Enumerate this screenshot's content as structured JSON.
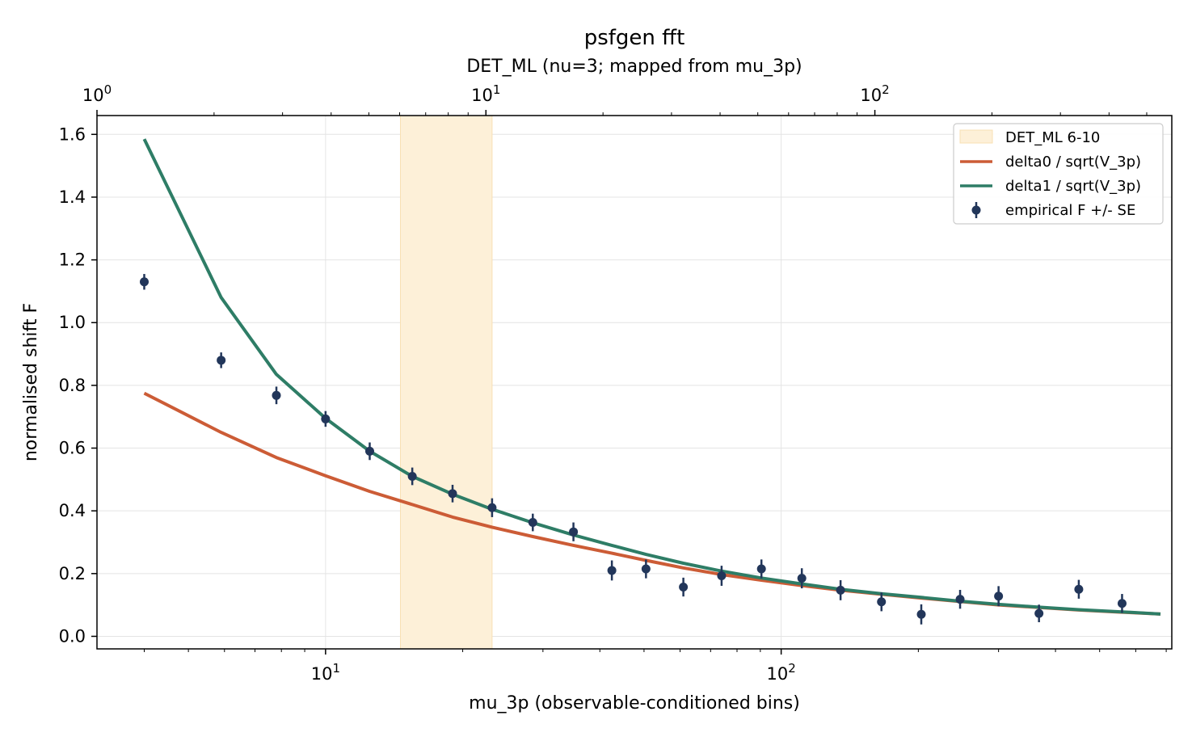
{
  "chart_data": {
    "type": "line",
    "title": "psfgen fft",
    "xlabel": "mu_3p (observable-conditioned bins)",
    "ylabel": "normalised shift F",
    "top_xlabel": "DET_ML (nu=3; mapped from mu_3p)",
    "x_scale": "log",
    "xlim": [
      3.15,
      720
    ],
    "ylim": [
      -0.04,
      1.66
    ],
    "y_ticks": [
      0.0,
      0.2,
      0.4,
      0.6,
      0.8,
      1.0,
      1.2,
      1.4,
      1.6
    ],
    "y_tick_labels": [
      "0.0",
      "0.2",
      "0.4",
      "0.6",
      "0.8",
      "1.0",
      "1.2",
      "1.4",
      "1.6"
    ],
    "x_ticks": [
      {
        "value": 10,
        "base": "10",
        "exp": "1"
      },
      {
        "value": 100,
        "base": "10",
        "exp": "2"
      }
    ],
    "top_axis": {
      "scale": "log",
      "xlim": [
        1.0,
        580
      ],
      "ticks": [
        {
          "value": 1,
          "base": "10",
          "exp": "0"
        },
        {
          "value": 10,
          "base": "10",
          "exp": "1"
        },
        {
          "value": 100,
          "base": "10",
          "exp": "2"
        }
      ]
    },
    "grid": true,
    "legend_position": "top-right",
    "band": {
      "name": "DET_ML 6-10",
      "x0": 14.6,
      "x1": 23.2,
      "color": "#fdf0d8",
      "edge": "#f8e0b4"
    },
    "series": [
      {
        "name": "delta0 / sqrt(V_3p)",
        "color": "#cc5c36",
        "x": [
          4.0,
          5.9,
          7.8,
          10.0,
          12.5,
          15.5,
          19.0,
          23.2,
          28.5,
          35.0,
          42.5,
          50.5,
          61.0,
          74.0,
          90.5,
          111.0,
          135.0,
          166.0,
          203.0,
          247.0,
          300.0,
          368.0,
          450.0,
          560.0,
          680.0
        ],
        "y": [
          0.775,
          0.65,
          0.57,
          0.512,
          0.462,
          0.42,
          0.38,
          0.348,
          0.318,
          0.29,
          0.265,
          0.242,
          0.218,
          0.197,
          0.179,
          0.162,
          0.147,
          0.134,
          0.122,
          0.111,
          0.1,
          0.092,
          0.084,
          0.077,
          0.071
        ]
      },
      {
        "name": "delta1 / sqrt(V_3p)",
        "color": "#2e7d66",
        "x": [
          4.0,
          5.9,
          7.8,
          10.0,
          12.5,
          15.5,
          19.0,
          23.2,
          28.5,
          35.0,
          42.5,
          50.5,
          61.0,
          74.0,
          90.5,
          111.0,
          135.0,
          166.0,
          203.0,
          247.0,
          300.0,
          368.0,
          450.0,
          560.0,
          680.0
        ],
        "y": [
          1.585,
          1.08,
          0.835,
          0.695,
          0.59,
          0.51,
          0.453,
          0.405,
          0.362,
          0.323,
          0.29,
          0.261,
          0.233,
          0.208,
          0.186,
          0.167,
          0.15,
          0.136,
          0.124,
          0.112,
          0.102,
          0.093,
          0.085,
          0.078,
          0.071
        ]
      }
    ],
    "scatter": {
      "name": "empirical F +/- SE",
      "color": "#22365a",
      "points": [
        {
          "x": 4.0,
          "y": 1.13,
          "se": 0.025
        },
        {
          "x": 5.9,
          "y": 0.88,
          "se": 0.025
        },
        {
          "x": 7.8,
          "y": 0.768,
          "se": 0.028
        },
        {
          "x": 10.0,
          "y": 0.693,
          "se": 0.025
        },
        {
          "x": 12.5,
          "y": 0.59,
          "se": 0.028
        },
        {
          "x": 15.5,
          "y": 0.51,
          "se": 0.028
        },
        {
          "x": 19.0,
          "y": 0.455,
          "se": 0.028
        },
        {
          "x": 23.2,
          "y": 0.41,
          "se": 0.03
        },
        {
          "x": 28.5,
          "y": 0.363,
          "se": 0.028
        },
        {
          "x": 35.0,
          "y": 0.333,
          "se": 0.03
        },
        {
          "x": 42.5,
          "y": 0.21,
          "se": 0.032
        },
        {
          "x": 50.5,
          "y": 0.215,
          "se": 0.03
        },
        {
          "x": 61.0,
          "y": 0.157,
          "se": 0.03
        },
        {
          "x": 74.0,
          "y": 0.193,
          "se": 0.032
        },
        {
          "x": 90.5,
          "y": 0.215,
          "se": 0.03
        },
        {
          "x": 111.0,
          "y": 0.185,
          "se": 0.032
        },
        {
          "x": 135.0,
          "y": 0.147,
          "se": 0.032
        },
        {
          "x": 166.0,
          "y": 0.11,
          "se": 0.03
        },
        {
          "x": 203.0,
          "y": 0.07,
          "se": 0.032
        },
        {
          "x": 247.0,
          "y": 0.118,
          "se": 0.03
        },
        {
          "x": 300.0,
          "y": 0.128,
          "se": 0.032
        },
        {
          "x": 368.0,
          "y": 0.073,
          "se": 0.028
        },
        {
          "x": 450.0,
          "y": 0.15,
          "se": 0.03
        },
        {
          "x": 560.0,
          "y": 0.105,
          "se": 0.03
        }
      ]
    }
  }
}
